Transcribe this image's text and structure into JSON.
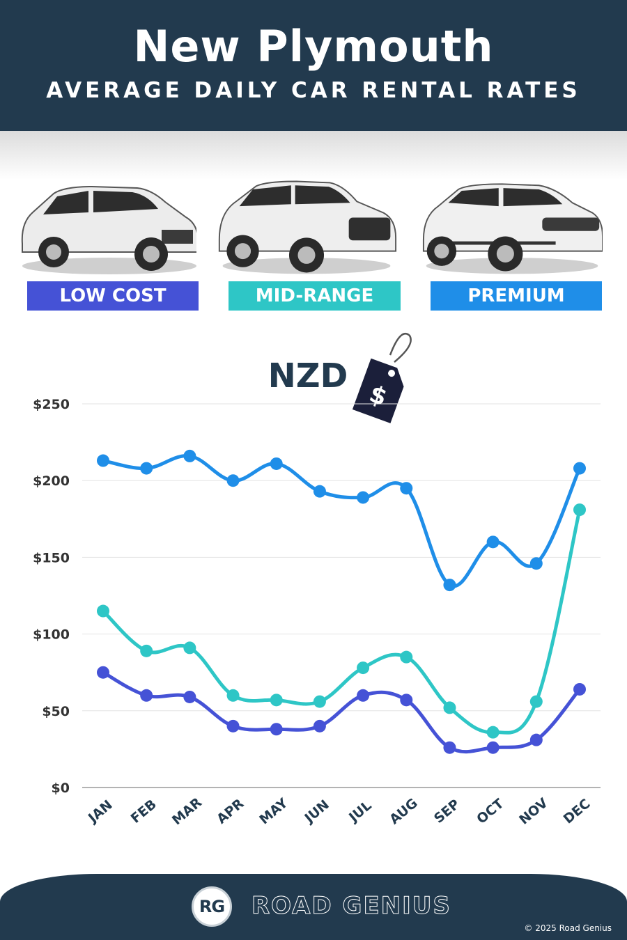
{
  "header": {
    "title": "New Plymouth",
    "subtitle": "AVERAGE DAILY CAR RENTAL RATES"
  },
  "categories": [
    {
      "label": "LOW COST",
      "color": "#4552d6",
      "icon": "hatchback-car-image"
    },
    {
      "label": "MID-RANGE",
      "color": "#2ec6c6",
      "icon": "suv-car-image"
    },
    {
      "label": "PREMIUM",
      "color": "#1f8ee8",
      "icon": "luxury-suv-car-image"
    }
  ],
  "currency": {
    "label": "NZD",
    "icon": "price-tag-icon",
    "symbol": "$"
  },
  "chart_data": {
    "type": "line",
    "categories": [
      "JAN",
      "FEB",
      "MAR",
      "APR",
      "MAY",
      "JUN",
      "JUL",
      "AUG",
      "SEP",
      "OCT",
      "NOV",
      "DEC"
    ],
    "series": [
      {
        "name": "PREMIUM",
        "color": "#1f8ee8",
        "values": [
          213,
          208,
          216,
          200,
          211,
          193,
          189,
          195,
          132,
          160,
          146,
          208
        ]
      },
      {
        "name": "MID-RANGE",
        "color": "#2ec6c6",
        "values": [
          115,
          89,
          91,
          60,
          57,
          56,
          78,
          85,
          52,
          36,
          56,
          181
        ]
      },
      {
        "name": "LOW COST",
        "color": "#4552d6",
        "values": [
          75,
          60,
          59,
          40,
          38,
          40,
          60,
          57,
          26,
          26,
          31,
          64
        ]
      }
    ],
    "y_ticks": [
      "$250",
      "$200",
      "$150",
      "$100",
      "$50",
      "$0"
    ],
    "ylim": [
      0,
      250
    ],
    "grid": true,
    "title": "",
    "xlabel": "",
    "ylabel": ""
  },
  "footer": {
    "logo_initials": "RG",
    "brand": "ROAD GENIUS",
    "copyright": "© 2025 Road Genius"
  }
}
